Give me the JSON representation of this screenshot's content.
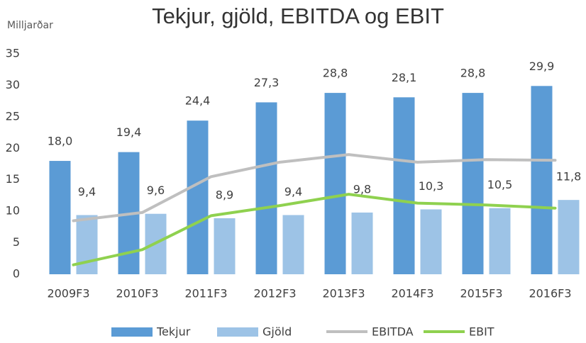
{
  "chart_data": {
    "type": "bar",
    "title": "Tekjur, gjöld, EBITDA og EBIT",
    "y_label": "Milljarðar",
    "categories": [
      "2009F3",
      "2010F3",
      "2011F3",
      "2012F3",
      "2013F3",
      "2014F3",
      "2015F3",
      "2016F3"
    ],
    "series": [
      {
        "name": "Tekjur",
        "type": "bar",
        "color": "#5b9bd5",
        "values": [
          18.0,
          19.4,
          24.4,
          27.3,
          28.8,
          28.1,
          28.8,
          29.9
        ],
        "value_labels": [
          "18,0",
          "19,4",
          "24,4",
          "27,3",
          "28,8",
          "28,1",
          "28,8",
          "29,9"
        ]
      },
      {
        "name": "Gjöld",
        "type": "bar",
        "color": "#9dc3e6",
        "values": [
          9.4,
          9.6,
          8.9,
          9.4,
          9.8,
          10.3,
          10.5,
          11.8
        ],
        "value_labels": [
          "9,4",
          "9,6",
          "8,9",
          "9,4",
          "9,8",
          "10,3",
          "10,5",
          "11,8"
        ]
      },
      {
        "name": "EBITDA",
        "type": "line",
        "color": "#bfbfbf",
        "values": [
          8.5,
          9.8,
          15.5,
          17.8,
          19.0,
          17.8,
          18.2,
          18.1
        ]
      },
      {
        "name": "EBIT",
        "type": "line",
        "color": "#8fd14f",
        "values": [
          1.5,
          3.9,
          9.3,
          10.9,
          12.7,
          11.3,
          11.0,
          10.5
        ]
      }
    ],
    "ylim": [
      0,
      35
    ],
    "yticks": [
      0,
      5,
      10,
      15,
      20,
      25,
      30,
      35
    ],
    "grid": false,
    "legend": "bottom"
  }
}
